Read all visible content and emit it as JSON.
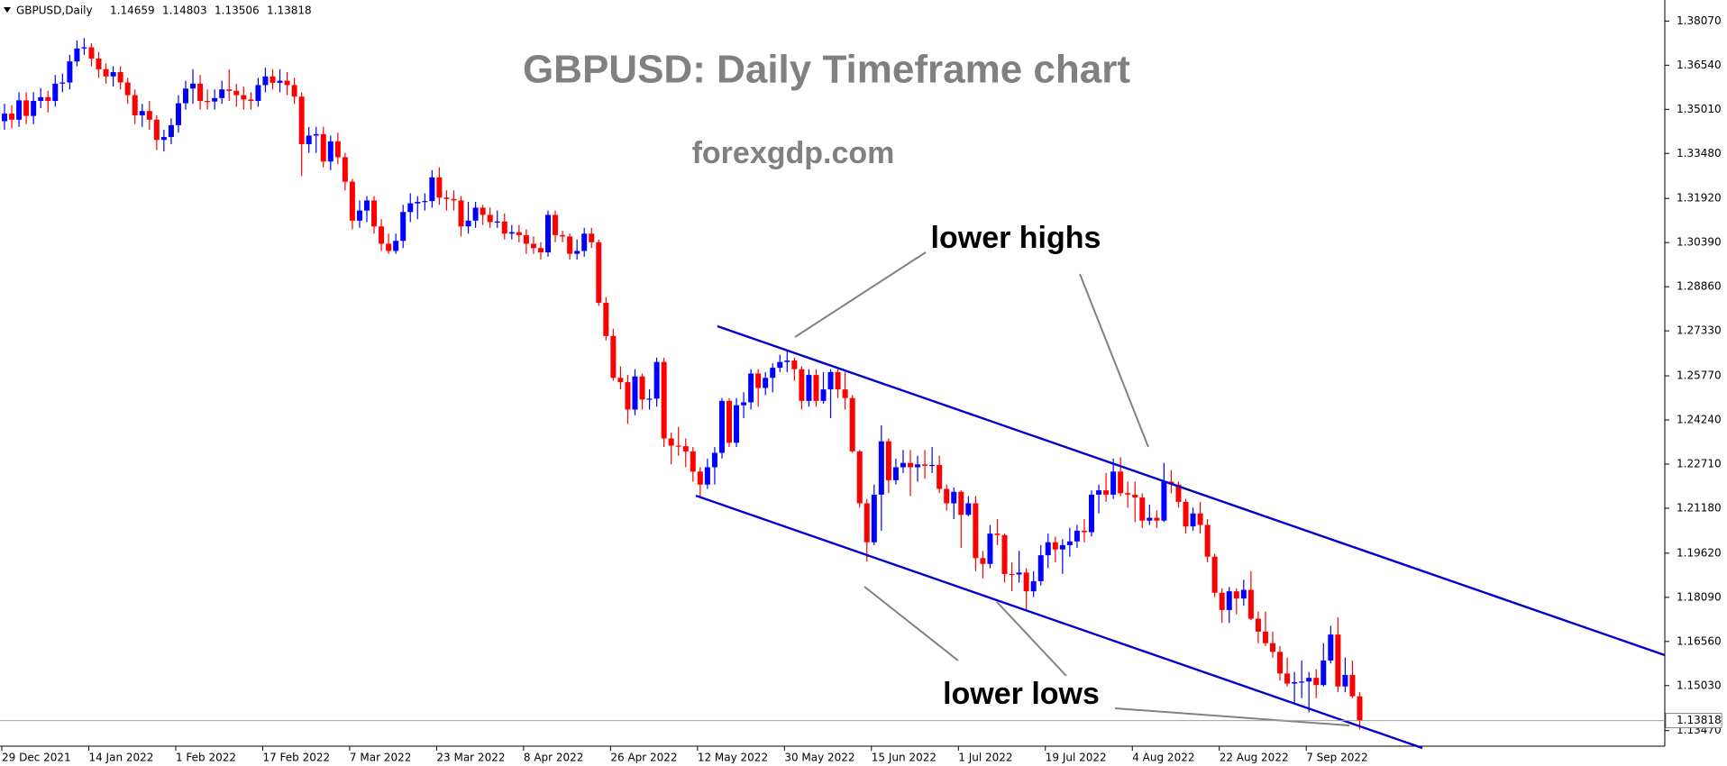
{
  "chart_data": {
    "type": "candlestick",
    "symbol": "GBPUSD,Daily",
    "title": "GBPUSD: Daily Timeframe chart",
    "subtitle": "forexgdp.com",
    "annotations": [
      "lower highs",
      "lower lows"
    ],
    "up_color": "#0000ff",
    "down_color": "#ff0000",
    "ylim": [
      1.1293,
      1.388
    ],
    "yticks": [
      {
        "value": 1.3807,
        "label": "1.38070"
      },
      {
        "value": 1.3654,
        "label": "1.36540"
      },
      {
        "value": 1.3501,
        "label": "1.35010"
      },
      {
        "value": 1.3348,
        "label": "1.33480"
      },
      {
        "value": 1.3192,
        "label": "1.31920"
      },
      {
        "value": 1.3039,
        "label": "1.30390"
      },
      {
        "value": 1.2886,
        "label": "1.28860"
      },
      {
        "value": 1.2733,
        "label": "1.27330"
      },
      {
        "value": 1.2577,
        "label": "1.25770"
      },
      {
        "value": 1.2424,
        "label": "1.24240"
      },
      {
        "value": 1.2271,
        "label": "1.22710"
      },
      {
        "value": 1.2118,
        "label": "1.21180"
      },
      {
        "value": 1.1962,
        "label": "1.19620"
      },
      {
        "value": 1.1809,
        "label": "1.18090"
      },
      {
        "value": 1.1656,
        "label": "1.16560"
      },
      {
        "value": 1.1503,
        "label": "1.15030"
      },
      {
        "value": 1.1347,
        "label": "1.13470"
      }
    ],
    "categories": [
      "29 Dec 2021",
      null,
      null,
      null,
      null,
      null,
      null,
      null,
      null,
      null,
      null,
      null,
      "14 Jan 2022",
      null,
      null,
      null,
      null,
      null,
      null,
      null,
      null,
      null,
      null,
      null,
      "1 Feb 2022",
      null,
      null,
      null,
      null,
      null,
      null,
      null,
      null,
      null,
      null,
      null,
      "17 Feb 2022",
      null,
      null,
      null,
      null,
      null,
      null,
      null,
      null,
      null,
      null,
      null,
      "7 Mar 2022",
      null,
      null,
      null,
      null,
      null,
      null,
      null,
      null,
      null,
      null,
      null,
      "23 Mar 2022",
      null,
      null,
      null,
      null,
      null,
      null,
      null,
      null,
      null,
      null,
      null,
      "8 Apr 2022",
      null,
      null,
      null,
      null,
      null,
      null,
      null,
      null,
      null,
      null,
      null,
      "26 Apr 2022",
      null,
      null,
      null,
      null,
      null,
      null,
      null,
      null,
      null,
      null,
      null,
      "12 May 2022",
      null,
      null,
      null,
      null,
      null,
      null,
      null,
      null,
      null,
      null,
      null,
      "30 May 2022",
      null,
      null,
      null,
      null,
      null,
      null,
      null,
      null,
      null,
      null,
      null,
      "15 Jun 2022",
      null,
      null,
      null,
      null,
      null,
      null,
      null,
      null,
      null,
      null,
      null,
      "1 Jul 2022",
      null,
      null,
      null,
      null,
      null,
      null,
      null,
      null,
      null,
      null,
      null,
      "19 Jul 2022",
      null,
      null,
      null,
      null,
      null,
      null,
      null,
      null,
      null,
      null,
      null,
      "4 Aug 2022",
      null,
      null,
      null,
      null,
      null,
      null,
      null,
      null,
      null,
      null,
      null,
      "22 Aug 2022",
      null,
      null,
      null,
      null,
      null,
      null,
      null,
      null,
      null,
      null,
      null,
      "7 Sep 2022",
      null,
      null,
      null,
      null,
      null,
      null,
      null
    ],
    "candles": [
      [
        1.346,
        1.352,
        1.343,
        1.3486
      ],
      [
        1.3486,
        1.3515,
        1.3435,
        1.3465
      ],
      [
        1.3465,
        1.356,
        1.344,
        1.3532
      ],
      [
        1.3532,
        1.356,
        1.345,
        1.3478
      ],
      [
        1.3478,
        1.356,
        1.345,
        1.353
      ],
      [
        1.353,
        1.3575,
        1.3505,
        1.3543
      ],
      [
        1.3543,
        1.3565,
        1.349,
        1.353
      ],
      [
        1.353,
        1.362,
        1.351,
        1.359
      ],
      [
        1.359,
        1.3625,
        1.356,
        1.3594
      ],
      [
        1.3594,
        1.369,
        1.357,
        1.3667
      ],
      [
        1.3667,
        1.374,
        1.365,
        1.3712
      ],
      [
        1.3712,
        1.3748,
        1.369,
        1.3716
      ],
      [
        1.3716,
        1.373,
        1.365,
        1.3677
      ],
      [
        1.3677,
        1.37,
        1.361,
        1.364
      ],
      [
        1.364,
        1.366,
        1.359,
        1.3615
      ],
      [
        1.3615,
        1.365,
        1.358,
        1.363
      ],
      [
        1.363,
        1.365,
        1.357,
        1.3594
      ],
      [
        1.3594,
        1.361,
        1.352,
        1.355
      ],
      [
        1.355,
        1.357,
        1.345,
        1.348
      ],
      [
        1.348,
        1.352,
        1.344,
        1.3495
      ],
      [
        1.3495,
        1.353,
        1.343,
        1.3465
      ],
      [
        1.3465,
        1.348,
        1.336,
        1.3395
      ],
      [
        1.3395,
        1.343,
        1.3355,
        1.3405
      ],
      [
        1.3405,
        1.347,
        1.338,
        1.3446
      ],
      [
        1.3446,
        1.355,
        1.342,
        1.3522
      ],
      [
        1.3522,
        1.36,
        1.35,
        1.3573
      ],
      [
        1.3573,
        1.364,
        1.352,
        1.359
      ],
      [
        1.359,
        1.362,
        1.35,
        1.353
      ],
      [
        1.353,
        1.357,
        1.35,
        1.3528
      ],
      [
        1.3528,
        1.357,
        1.35,
        1.354
      ],
      [
        1.354,
        1.36,
        1.352,
        1.357
      ],
      [
        1.357,
        1.364,
        1.353,
        1.3565
      ],
      [
        1.3565,
        1.359,
        1.351,
        1.355
      ],
      [
        1.355,
        1.358,
        1.35,
        1.3535
      ],
      [
        1.3535,
        1.356,
        1.35,
        1.353
      ],
      [
        1.353,
        1.361,
        1.351,
        1.3585
      ],
      [
        1.3585,
        1.3645,
        1.356,
        1.3615
      ],
      [
        1.3615,
        1.364,
        1.357,
        1.3593
      ],
      [
        1.3593,
        1.364,
        1.356,
        1.36
      ],
      [
        1.36,
        1.363,
        1.355,
        1.3585
      ],
      [
        1.3585,
        1.361,
        1.352,
        1.3545
      ],
      [
        1.3545,
        1.356,
        1.327,
        1.338
      ],
      [
        1.338,
        1.344,
        1.335,
        1.341
      ],
      [
        1.341,
        1.344,
        1.335,
        1.3415
      ],
      [
        1.3415,
        1.344,
        1.33,
        1.332
      ],
      [
        1.332,
        1.341,
        1.329,
        1.339
      ],
      [
        1.339,
        1.342,
        1.331,
        1.3335
      ],
      [
        1.3335,
        1.335,
        1.322,
        1.325
      ],
      [
        1.325,
        1.326,
        1.3085,
        1.3115
      ],
      [
        1.3115,
        1.3185,
        1.309,
        1.315
      ],
      [
        1.315,
        1.32,
        1.311,
        1.3185
      ],
      [
        1.3185,
        1.32,
        1.307,
        1.3095
      ],
      [
        1.3095,
        1.312,
        1.301,
        1.3035
      ],
      [
        1.3035,
        1.307,
        1.3,
        1.301
      ],
      [
        1.301,
        1.307,
        1.3,
        1.3045
      ],
      [
        1.3045,
        1.317,
        1.302,
        1.3145
      ],
      [
        1.3145,
        1.321,
        1.311,
        1.3175
      ],
      [
        1.3175,
        1.32,
        1.312,
        1.318
      ],
      [
        1.318,
        1.321,
        1.315,
        1.3183
      ],
      [
        1.3183,
        1.329,
        1.316,
        1.3265
      ],
      [
        1.3265,
        1.33,
        1.317,
        1.3195
      ],
      [
        1.3195,
        1.322,
        1.315,
        1.319
      ],
      [
        1.319,
        1.322,
        1.315,
        1.3185
      ],
      [
        1.3185,
        1.32,
        1.306,
        1.3095
      ],
      [
        1.3095,
        1.318,
        1.307,
        1.3115
      ],
      [
        1.3115,
        1.318,
        1.309,
        1.316
      ],
      [
        1.316,
        1.317,
        1.31,
        1.3135
      ],
      [
        1.3135,
        1.316,
        1.309,
        1.311
      ],
      [
        1.311,
        1.315,
        1.309,
        1.3112
      ],
      [
        1.3112,
        1.314,
        1.305,
        1.307
      ],
      [
        1.307,
        1.31,
        1.305,
        1.3075
      ],
      [
        1.3075,
        1.31,
        1.304,
        1.3065
      ],
      [
        1.3065,
        1.3085,
        1.3,
        1.3035
      ],
      [
        1.3035,
        1.306,
        1.3,
        1.302
      ],
      [
        1.302,
        1.304,
        1.298,
        1.3005
      ],
      [
        1.3005,
        1.315,
        1.299,
        1.3135
      ],
      [
        1.3135,
        1.315,
        1.304,
        1.3065
      ],
      [
        1.3065,
        1.308,
        1.304,
        1.306
      ],
      [
        1.306,
        1.307,
        1.298,
        1.3
      ],
      [
        1.3,
        1.305,
        1.298,
        1.301
      ],
      [
        1.301,
        1.309,
        1.299,
        1.307
      ],
      [
        1.307,
        1.309,
        1.302,
        1.304
      ],
      [
        1.304,
        1.305,
        1.282,
        1.283
      ],
      [
        1.283,
        1.285,
        1.27,
        1.2715
      ],
      [
        1.2715,
        1.274,
        1.256,
        1.257
      ],
      [
        1.257,
        1.261,
        1.253,
        1.2555
      ],
      [
        1.2555,
        1.258,
        1.241,
        1.246
      ],
      [
        1.246,
        1.26,
        1.244,
        1.2575
      ],
      [
        1.2575,
        1.2585,
        1.246,
        1.2495
      ],
      [
        1.2495,
        1.253,
        1.246,
        1.2498
      ],
      [
        1.2498,
        1.264,
        1.247,
        1.2625
      ],
      [
        1.2625,
        1.264,
        1.233,
        1.236
      ],
      [
        1.236,
        1.238,
        1.227,
        1.2335
      ],
      [
        1.2335,
        1.24,
        1.23,
        1.2333
      ],
      [
        1.2333,
        1.236,
        1.226,
        1.2315
      ],
      [
        1.2315,
        1.233,
        1.221,
        1.2245
      ],
      [
        1.2245,
        1.226,
        1.2155,
        1.22
      ],
      [
        1.22,
        1.229,
        1.2185,
        1.226
      ],
      [
        1.226,
        1.233,
        1.22,
        1.231
      ],
      [
        1.231,
        1.25,
        1.229,
        1.249
      ],
      [
        1.249,
        1.25,
        1.233,
        1.2345
      ],
      [
        1.2345,
        1.25,
        1.233,
        1.2475
      ],
      [
        1.2475,
        1.252,
        1.243,
        1.2485
      ],
      [
        1.2485,
        1.26,
        1.246,
        1.2585
      ],
      [
        1.2585,
        1.26,
        1.247,
        1.2535
      ],
      [
        1.2535,
        1.259,
        1.251,
        1.257
      ],
      [
        1.257,
        1.262,
        1.252,
        1.2605
      ],
      [
        1.2605,
        1.265,
        1.259,
        1.2625
      ],
      [
        1.2625,
        1.2665,
        1.259,
        1.263
      ],
      [
        1.263,
        1.264,
        1.256,
        1.26
      ],
      [
        1.26,
        1.261,
        1.246,
        1.249
      ],
      [
        1.249,
        1.26,
        1.247,
        1.258
      ],
      [
        1.258,
        1.26,
        1.247,
        1.249
      ],
      [
        1.249,
        1.259,
        1.248,
        1.253
      ],
      [
        1.253,
        1.26,
        1.243,
        1.259
      ],
      [
        1.259,
        1.26,
        1.25,
        1.253
      ],
      [
        1.253,
        1.259,
        1.246,
        1.25
      ],
      [
        1.25,
        1.251,
        1.231,
        1.2315
      ],
      [
        1.2315,
        1.232,
        1.212,
        1.2135
      ],
      [
        1.2135,
        1.215,
        1.1934,
        1.2
      ],
      [
        1.2,
        1.22,
        1.199,
        1.2165
      ],
      [
        1.2165,
        1.2405,
        1.204,
        1.235
      ],
      [
        1.235,
        1.236,
        1.217,
        1.2215
      ],
      [
        1.2215,
        1.229,
        1.22,
        1.226
      ],
      [
        1.226,
        1.232,
        1.224,
        1.2275
      ],
      [
        1.2275,
        1.232,
        1.216,
        1.226
      ],
      [
        1.226,
        1.23,
        1.221,
        1.227
      ],
      [
        1.227,
        1.232,
        1.222,
        1.2265
      ],
      [
        1.2265,
        1.233,
        1.224,
        1.2268
      ],
      [
        1.2268,
        1.23,
        1.217,
        1.2185
      ],
      [
        1.2185,
        1.22,
        1.211,
        1.2135
      ],
      [
        1.2135,
        1.219,
        1.208,
        1.2175
      ],
      [
        1.2175,
        1.218,
        1.198,
        1.2095
      ],
      [
        1.2095,
        1.216,
        1.209,
        1.2135
      ],
      [
        1.2135,
        1.216,
        1.19,
        1.1945
      ],
      [
        1.1945,
        1.197,
        1.1875,
        1.1925
      ],
      [
        1.1925,
        1.206,
        1.191,
        1.203
      ],
      [
        1.203,
        1.208,
        1.199,
        1.2025
      ],
      [
        1.2025,
        1.203,
        1.186,
        1.189
      ],
      [
        1.189,
        1.193,
        1.183,
        1.1888
      ],
      [
        1.1888,
        1.197,
        1.186,
        1.1895
      ],
      [
        1.1895,
        1.191,
        1.176,
        1.183
      ],
      [
        1.183,
        1.19,
        1.181,
        1.1865
      ],
      [
        1.1865,
        1.199,
        1.185,
        1.1955
      ],
      [
        1.1955,
        1.203,
        1.191,
        1.2
      ],
      [
        1.2,
        1.202,
        1.193,
        1.1975
      ],
      [
        1.1975,
        1.201,
        1.189,
        1.199
      ],
      [
        1.199,
        1.205,
        1.195,
        1.2003
      ],
      [
        1.2003,
        1.206,
        1.198,
        1.204
      ],
      [
        1.204,
        1.208,
        1.2,
        1.2035
      ],
      [
        1.2035,
        1.218,
        1.202,
        1.2165
      ],
      [
        1.2165,
        1.22,
        1.21,
        1.218
      ],
      [
        1.218,
        1.224,
        1.214,
        1.2165
      ],
      [
        1.2165,
        1.229,
        1.215,
        1.2245
      ],
      [
        1.2245,
        1.2295,
        1.216,
        1.217
      ],
      [
        1.217,
        1.221,
        1.212,
        1.2165
      ],
      [
        1.2165,
        1.221,
        1.207,
        1.2155
      ],
      [
        1.2155,
        1.217,
        1.205,
        1.2075
      ],
      [
        1.2075,
        1.213,
        1.206,
        1.2085
      ],
      [
        1.2085,
        1.211,
        1.205,
        1.2075
      ],
      [
        1.2075,
        1.2275,
        1.207,
        1.221
      ],
      [
        1.221,
        1.225,
        1.217,
        1.22
      ],
      [
        1.22,
        1.221,
        1.212,
        1.214
      ],
      [
        1.214,
        1.215,
        1.203,
        1.2055
      ],
      [
        1.2055,
        1.212,
        1.204,
        1.21
      ],
      [
        1.21,
        1.214,
        1.203,
        1.206
      ],
      [
        1.206,
        1.208,
        1.193,
        1.195
      ],
      [
        1.195,
        1.196,
        1.181,
        1.1825
      ],
      [
        1.1825,
        1.184,
        1.172,
        1.1765
      ],
      [
        1.1765,
        1.1845,
        1.172,
        1.183
      ],
      [
        1.183,
        1.184,
        1.175,
        1.1805
      ],
      [
        1.1805,
        1.187,
        1.178,
        1.1835
      ],
      [
        1.1835,
        1.19,
        1.173,
        1.1735
      ],
      [
        1.1735,
        1.176,
        1.165,
        1.169
      ],
      [
        1.169,
        1.176,
        1.164,
        1.165
      ],
      [
        1.165,
        1.169,
        1.16,
        1.162
      ],
      [
        1.162,
        1.164,
        1.152,
        1.1545
      ],
      [
        1.1545,
        1.16,
        1.15,
        1.151
      ],
      [
        1.151,
        1.155,
        1.144,
        1.1515
      ],
      [
        1.1515,
        1.159,
        1.146,
        1.1517
      ],
      [
        1.1517,
        1.155,
        1.141,
        1.153
      ],
      [
        1.153,
        1.156,
        1.146,
        1.1505
      ],
      [
        1.1505,
        1.165,
        1.15,
        1.159
      ],
      [
        1.159,
        1.171,
        1.158,
        1.168
      ],
      [
        1.168,
        1.174,
        1.148,
        1.15
      ],
      [
        1.15,
        1.16,
        1.148,
        1.154
      ],
      [
        1.154,
        1.159,
        1.146,
        1.1466
      ],
      [
        1.14659,
        1.14803,
        1.13506,
        1.13818
      ]
    ]
  }
}
